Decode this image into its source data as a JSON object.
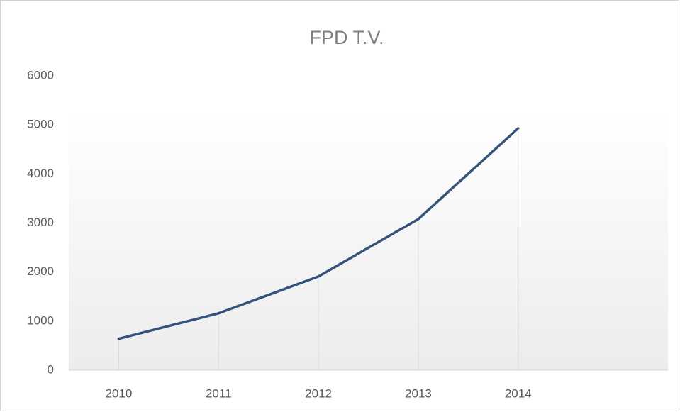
{
  "chart_data": {
    "type": "line",
    "title": "FPD T.V.",
    "categories": [
      "2010",
      "2011",
      "2012",
      "2013",
      "2014",
      null
    ],
    "values": [
      640,
      1160,
      1910,
      3080,
      4930,
      null
    ],
    "color": "#34527a",
    "ylim": [
      0,
      6000
    ],
    "yticks": [
      0,
      1000,
      2000,
      3000,
      4000,
      5000,
      6000
    ],
    "drop_lines": true
  }
}
